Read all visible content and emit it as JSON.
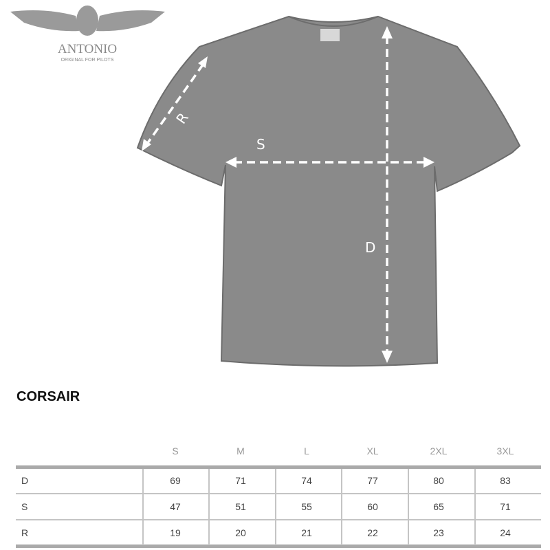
{
  "logo": {
    "brand": "ANTONIO",
    "tagline": "ORIGINAL FOR PILOTS"
  },
  "diagram": {
    "labels": {
      "sleeve": "R",
      "width": "S",
      "length": "D"
    },
    "shirt_color": "#8a8a8a"
  },
  "product_title": "CORSAIR",
  "table": {
    "columns": [
      "S",
      "M",
      "L",
      "XL",
      "2XL",
      "3XL"
    ],
    "rows": [
      {
        "label": "D",
        "values": [
          "69",
          "71",
          "74",
          "77",
          "80",
          "83"
        ]
      },
      {
        "label": "S",
        "values": [
          "47",
          "51",
          "55",
          "60",
          "65",
          "71"
        ]
      },
      {
        "label": "R",
        "values": [
          "19",
          "20",
          "21",
          "22",
          "23",
          "24"
        ]
      }
    ]
  }
}
